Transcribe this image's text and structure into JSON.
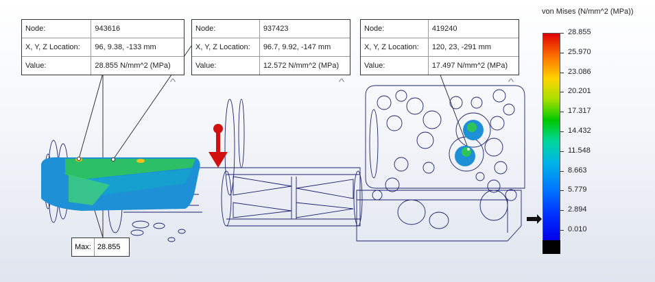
{
  "probes": [
    {
      "node_label": "Node:",
      "node": "943616",
      "xyz_label": "X, Y, Z Location:",
      "xyz": "96, 9.38, -133 mm",
      "value_label": "Value:",
      "value": "28.855 N/mm^2 (MPa)"
    },
    {
      "node_label": "Node:",
      "node": "937423",
      "xyz_label": "X, Y, Z Location:",
      "xyz": "96.7, 9.92, -147 mm",
      "value_label": "Value:",
      "value": "12.572 N/mm^2 (MPa)"
    },
    {
      "node_label": "Node:",
      "node": "419240",
      "xyz_label": "X, Y, Z Location:",
      "xyz": "120, 23, -291 mm",
      "value_label": "Value:",
      "value": "17.497 N/mm^2 (MPa)"
    }
  ],
  "max_marker": {
    "label": "Max:",
    "value": "28.855"
  },
  "legend": {
    "title": "von Mises (N/mm^2 (MPa))",
    "ticks": [
      "28.855",
      "25.970",
      "23.086",
      "20.201",
      "17.317",
      "14.432",
      "11.548",
      "8.663",
      "5.779",
      "2.894",
      "0.010"
    ],
    "yield_arrow_value": "2.894"
  },
  "colors": {
    "wire": "#1a1f6e",
    "stress_low": "#1e90d6",
    "stress_mid": "#2ec45a",
    "load_arrow": "#d01010"
  },
  "icons": [
    "collapse-caret-icon",
    "load-arrow-icon",
    "yield-pointer-icon"
  ]
}
